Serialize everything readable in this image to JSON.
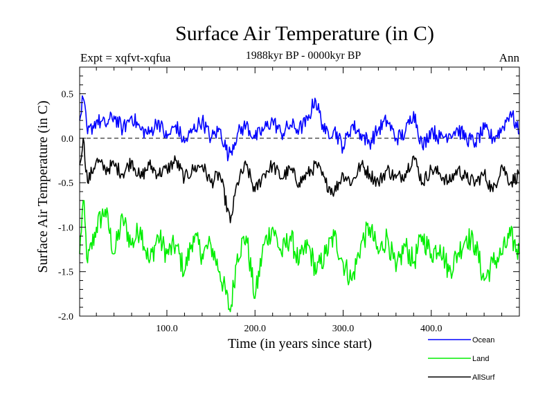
{
  "chart_data": {
    "type": "line",
    "title": "Surface Air Temperature (in C)",
    "subtitle": "1988kyr BP - 0000kyr BP",
    "left_label": "Expt = xqfvt-xqfua",
    "right_label": "Ann",
    "xlabel": "Time (in years since start)",
    "ylabel": "Surface Air Temperature (in C)",
    "xlim": [
      1,
      500
    ],
    "ylim": [
      -2.0,
      0.8
    ],
    "x_ticks": [
      100,
      200,
      300,
      400
    ],
    "x_tick_labels": [
      "100.0",
      "200.0",
      "300.0",
      "400.0"
    ],
    "y_ticks": [
      0.5,
      0.0,
      -0.5,
      -1.0,
      -1.5,
      -2.0
    ],
    "y_tick_labels": [
      "0.5",
      "0.0",
      "-0.5",
      "-1.0",
      "-1.5",
      "-2.0"
    ],
    "zero_line": "dashed",
    "series": [
      {
        "name": "Ocean",
        "color": "#0000ff",
        "description": "noisy annual series fluctuating around ~0.05",
        "x": [
          1,
          5,
          10,
          20,
          30,
          40,
          50,
          60,
          70,
          80,
          90,
          100,
          110,
          120,
          130,
          140,
          150,
          160,
          170,
          180,
          190,
          200,
          210,
          220,
          230,
          240,
          250,
          260,
          268,
          280,
          290,
          300,
          310,
          320,
          330,
          340,
          350,
          360,
          370,
          380,
          390,
          400,
          410,
          420,
          430,
          440,
          450,
          460,
          470,
          480,
          490,
          500
        ],
        "values": [
          0.2,
          0.45,
          0.05,
          0.2,
          0.15,
          0.25,
          0.1,
          0.25,
          0.1,
          0.05,
          0.2,
          0.0,
          0.15,
          -0.05,
          0.1,
          0.2,
          0.0,
          0.1,
          -0.2,
          0.05,
          0.15,
          0.0,
          0.1,
          0.2,
          0.05,
          0.15,
          0.1,
          0.2,
          0.45,
          0.05,
          0.1,
          -0.1,
          0.15,
          0.05,
          -0.05,
          0.1,
          0.2,
          0.0,
          0.05,
          0.3,
          -0.1,
          0.1,
          0.0,
          0.05,
          0.1,
          0.0,
          -0.05,
          0.1,
          0.0,
          0.1,
          0.3,
          0.05
        ]
      },
      {
        "name": "Land",
        "color": "#00ee00",
        "description": "noisy annual series fluctuating around ~-1.25",
        "x": [
          1,
          5,
          10,
          20,
          30,
          40,
          50,
          60,
          70,
          80,
          90,
          100,
          110,
          120,
          130,
          140,
          150,
          160,
          172,
          180,
          190,
          200,
          210,
          220,
          230,
          240,
          250,
          260,
          270,
          280,
          290,
          300,
          310,
          320,
          330,
          340,
          350,
          360,
          370,
          380,
          390,
          400,
          410,
          420,
          430,
          440,
          450,
          460,
          470,
          480,
          490,
          500
        ],
        "values": [
          -1.3,
          -0.7,
          -1.4,
          -1.0,
          -0.8,
          -1.3,
          -0.9,
          -1.2,
          -1.0,
          -1.4,
          -1.1,
          -1.3,
          -1.2,
          -1.5,
          -1.1,
          -1.3,
          -1.2,
          -1.5,
          -1.95,
          -1.3,
          -1.1,
          -1.8,
          -1.2,
          -1.0,
          -1.3,
          -1.1,
          -1.4,
          -1.2,
          -1.5,
          -1.3,
          -1.1,
          -1.4,
          -1.6,
          -1.2,
          -1.0,
          -1.3,
          -1.1,
          -1.5,
          -1.2,
          -1.4,
          -1.1,
          -1.3,
          -1.2,
          -1.5,
          -1.3,
          -1.1,
          -1.2,
          -1.6,
          -1.4,
          -1.3,
          -1.1,
          -1.3
        ]
      },
      {
        "name": "AllSurf",
        "color": "#000000",
        "description": "noisy annual series fluctuating around ~-0.4",
        "x": [
          1,
          5,
          10,
          20,
          30,
          40,
          50,
          60,
          70,
          80,
          90,
          100,
          110,
          120,
          130,
          140,
          150,
          160,
          172,
          180,
          190,
          200,
          210,
          220,
          230,
          240,
          250,
          260,
          270,
          280,
          290,
          300,
          310,
          320,
          330,
          340,
          350,
          360,
          370,
          380,
          390,
          400,
          410,
          420,
          430,
          440,
          450,
          460,
          470,
          480,
          490,
          500
        ],
        "values": [
          -0.3,
          0.0,
          -0.5,
          -0.25,
          -0.35,
          -0.3,
          -0.4,
          -0.25,
          -0.45,
          -0.3,
          -0.4,
          -0.35,
          -0.25,
          -0.45,
          -0.35,
          -0.3,
          -0.5,
          -0.4,
          -0.95,
          -0.5,
          -0.3,
          -0.6,
          -0.4,
          -0.3,
          -0.45,
          -0.35,
          -0.5,
          -0.4,
          -0.3,
          -0.5,
          -0.6,
          -0.4,
          -0.5,
          -0.3,
          -0.4,
          -0.5,
          -0.35,
          -0.45,
          -0.4,
          -0.2,
          -0.5,
          -0.35,
          -0.4,
          -0.5,
          -0.35,
          -0.45,
          -0.5,
          -0.4,
          -0.6,
          -0.3,
          -0.5,
          -0.4
        ]
      }
    ],
    "legend": [
      {
        "label": "Ocean",
        "color": "#0000ff"
      },
      {
        "label": "Land",
        "color": "#00ee00"
      },
      {
        "label": "AllSurf",
        "color": "#000000"
      }
    ],
    "legend_position": "bottom-right"
  }
}
